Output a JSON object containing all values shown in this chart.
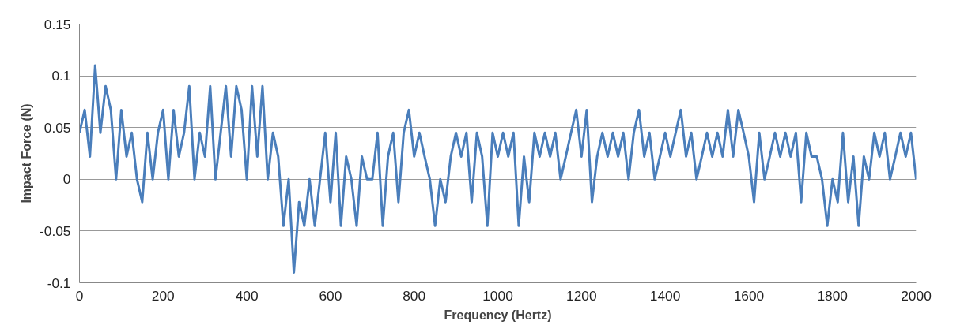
{
  "chart_data": {
    "type": "line",
    "xlabel": "Frequency (Hertz)",
    "ylabel": "Impact Force (N)",
    "xlim": [
      0,
      2000
    ],
    "xticks": [
      0,
      200,
      400,
      600,
      800,
      1000,
      1200,
      1400,
      1600,
      1800,
      2000
    ],
    "ylim": [
      -0.1,
      0.15
    ],
    "yticks": [
      -0.1,
      -0.05,
      0,
      0.05,
      0.1,
      0.15
    ],
    "grid": "y",
    "marker": "none",
    "line_style": "solid",
    "x": [
      0,
      12.5,
      25,
      37.5,
      50,
      62.5,
      75,
      87.5,
      100,
      112.5,
      125,
      137.5,
      150,
      162.5,
      175,
      187.5,
      200,
      212.5,
      225,
      237.5,
      250,
      262.5,
      275,
      287.5,
      300,
      312.5,
      325,
      337.5,
      350,
      362.5,
      375,
      387.5,
      400,
      412.5,
      425,
      437.5,
      450,
      462.5,
      475,
      487.5,
      500,
      512.5,
      525,
      537.5,
      550,
      562.5,
      575,
      587.5,
      600,
      612.5,
      625,
      637.5,
      650,
      662.5,
      675,
      687.5,
      700,
      712.5,
      725,
      737.5,
      750,
      762.5,
      775,
      787.5,
      800,
      812.5,
      825,
      837.5,
      850,
      862.5,
      875,
      887.5,
      900,
      912.5,
      925,
      937.5,
      950,
      962.5,
      975,
      987.5,
      1000,
      1012.5,
      1025,
      1037.5,
      1050,
      1062.5,
      1075,
      1087.5,
      1100,
      1112.5,
      1125,
      1137.5,
      1150,
      1162.5,
      1175,
      1187.5,
      1200,
      1212.5,
      1225,
      1237.5,
      1250,
      1262.5,
      1275,
      1287.5,
      1300,
      1312.5,
      1325,
      1337.5,
      1350,
      1362.5,
      1375,
      1387.5,
      1400,
      1412.5,
      1425,
      1437.5,
      1450,
      1462.5,
      1475,
      1487.5,
      1500,
      1512.5,
      1525,
      1537.5,
      1550,
      1562.5,
      1575,
      1587.5,
      1600,
      1612.5,
      1625,
      1637.5,
      1650,
      1662.5,
      1675,
      1687.5,
      1700,
      1712.5,
      1725,
      1737.5,
      1750,
      1762.5,
      1775,
      1787.5,
      1800,
      1812.5,
      1825,
      1837.5,
      1850,
      1862.5,
      1875,
      1887.5,
      1900,
      1912.5,
      1925,
      1937.5,
      1950,
      1962.5,
      1975,
      1987.5,
      2000
    ],
    "series": [
      {
        "color": "#4a7ebb",
        "values": [
          0.045,
          0.067,
          0.022,
          0.11,
          0.045,
          0.09,
          0.067,
          0,
          0.067,
          0.022,
          0.045,
          0,
          -0.022,
          0.045,
          0,
          0.045,
          0.067,
          0,
          0.067,
          0.022,
          0.045,
          0.09,
          0,
          0.045,
          0.022,
          0.09,
          0,
          0.045,
          0.09,
          0.022,
          0.09,
          0.067,
          0,
          0.09,
          0.022,
          0.09,
          0,
          0.045,
          0.022,
          -0.045,
          0,
          -0.09,
          -0.022,
          -0.045,
          0,
          -0.045,
          0,
          0.045,
          -0.022,
          0.045,
          -0.045,
          0.022,
          0,
          -0.045,
          0.022,
          0,
          0,
          0.045,
          -0.045,
          0.022,
          0.045,
          -0.022,
          0.045,
          0.067,
          0.022,
          0.045,
          0.022,
          0,
          -0.045,
          0,
          -0.022,
          0.022,
          0.045,
          0.022,
          0.045,
          -0.022,
          0.045,
          0.022,
          -0.045,
          0.045,
          0.022,
          0.045,
          0.022,
          0.045,
          -0.045,
          0.022,
          -0.022,
          0.045,
          0.022,
          0.045,
          0.022,
          0.045,
          0,
          0.022,
          0.045,
          0.067,
          0.022,
          0.067,
          -0.022,
          0.022,
          0.045,
          0.022,
          0.045,
          0.022,
          0.045,
          0,
          0.045,
          0.067,
          0.022,
          0.045,
          0,
          0.022,
          0.045,
          0.022,
          0.045,
          0.067,
          0.022,
          0.045,
          0,
          0.022,
          0.045,
          0.022,
          0.045,
          0.022,
          0.067,
          0.022,
          0.067,
          0.045,
          0.022,
          -0.022,
          0.045,
          0,
          0.022,
          0.045,
          0.022,
          0.045,
          0.022,
          0.045,
          -0.022,
          0.045,
          0.022,
          0.022,
          0,
          -0.045,
          0,
          -0.022,
          0.045,
          -0.022,
          0.022,
          -0.045,
          0.022,
          0,
          0.045,
          0.022,
          0.045,
          0,
          0.022,
          0.045,
          0.022,
          0.045,
          0
        ]
      }
    ]
  }
}
